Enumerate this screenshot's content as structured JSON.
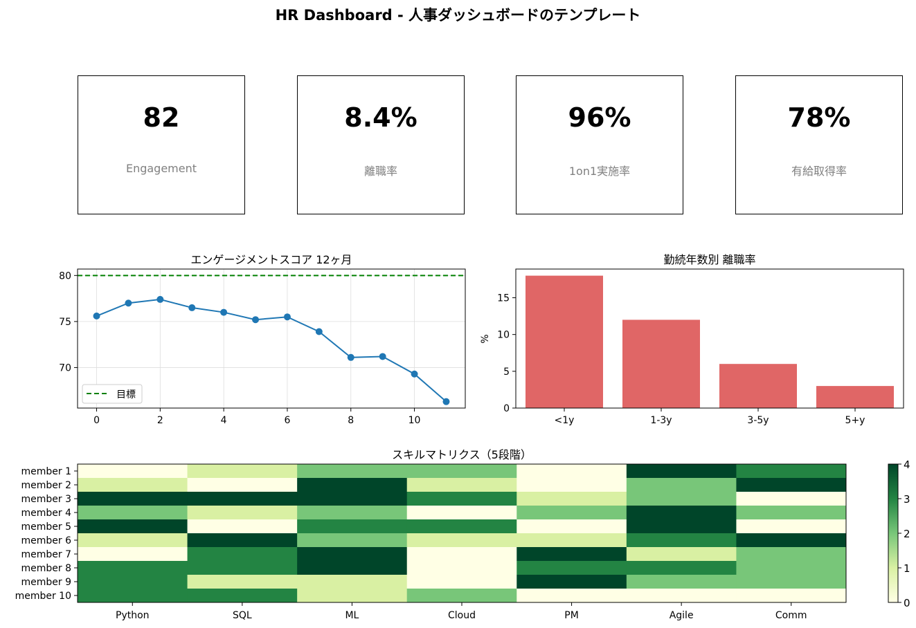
{
  "title": "HR Dashboard - 人事ダッシュボードのテンプレート",
  "kpis": [
    {
      "value": "82",
      "label": "Engagement"
    },
    {
      "value": "8.4%",
      "label": "離職率"
    },
    {
      "value": "96%",
      "label": "1on1実施率"
    },
    {
      "value": "78%",
      "label": "有給取得率"
    }
  ],
  "colors": {
    "line": "#1f77b4",
    "target": "#008000",
    "bar": "#e06666",
    "heatmap_scale": [
      "#ffffe5",
      "#d9f0a3",
      "#78c679",
      "#238443",
      "#004529"
    ]
  },
  "chart_data": [
    {
      "type": "line",
      "title": "エンゲージメントスコア 12ヶ月",
      "x": [
        0,
        1,
        2,
        3,
        4,
        5,
        6,
        7,
        8,
        9,
        10,
        11
      ],
      "y": [
        75.6,
        77.0,
        77.4,
        76.5,
        76.0,
        75.2,
        75.5,
        73.9,
        71.1,
        71.2,
        69.3,
        66.3
      ],
      "target": 80,
      "legend": [
        "目標"
      ],
      "legend_position": "lower-left",
      "xlim": [
        -0.6,
        11.6
      ],
      "ylim": [
        65.6,
        80.7
      ],
      "xticks": [
        0,
        2,
        4,
        6,
        8,
        10
      ],
      "yticks": [
        70,
        75,
        80
      ],
      "grid": true
    },
    {
      "type": "bar",
      "title": "勤続年数別 離職率",
      "categories": [
        "<1y",
        "1-3y",
        "3-5y",
        "5+y"
      ],
      "values": [
        18,
        12,
        6,
        3
      ],
      "ylabel": "%",
      "ylim": [
        0,
        18.9
      ],
      "yticks": [
        0,
        5,
        10,
        15
      ]
    },
    {
      "type": "heatmap",
      "title": "スキルマトリクス（5段階）",
      "columns": [
        "Python",
        "SQL",
        "ML",
        "Cloud",
        "PM",
        "Agile",
        "Comm"
      ],
      "rows": [
        "member 1",
        "member 2",
        "member 3",
        "member 4",
        "member 5",
        "member 6",
        "member 7",
        "member 8",
        "member 9",
        "member 10"
      ],
      "values": [
        [
          0,
          1,
          2,
          2,
          0,
          4,
          3
        ],
        [
          1,
          0,
          4,
          1,
          0,
          2,
          4
        ],
        [
          4,
          4,
          4,
          3,
          1,
          2,
          0
        ],
        [
          2,
          1,
          2,
          0,
          2,
          4,
          2
        ],
        [
          4,
          0,
          3,
          3,
          0,
          4,
          0
        ],
        [
          1,
          4,
          2,
          1,
          1,
          3,
          4
        ],
        [
          0,
          3,
          4,
          0,
          4,
          1,
          2
        ],
        [
          3,
          3,
          4,
          0,
          3,
          3,
          2
        ],
        [
          3,
          1,
          1,
          0,
          4,
          2,
          2
        ],
        [
          3,
          3,
          1,
          2,
          0,
          0,
          0
        ]
      ],
      "colorbar_ticks": [
        0,
        1,
        2,
        3,
        4
      ],
      "vmin": 0,
      "vmax": 4
    }
  ]
}
